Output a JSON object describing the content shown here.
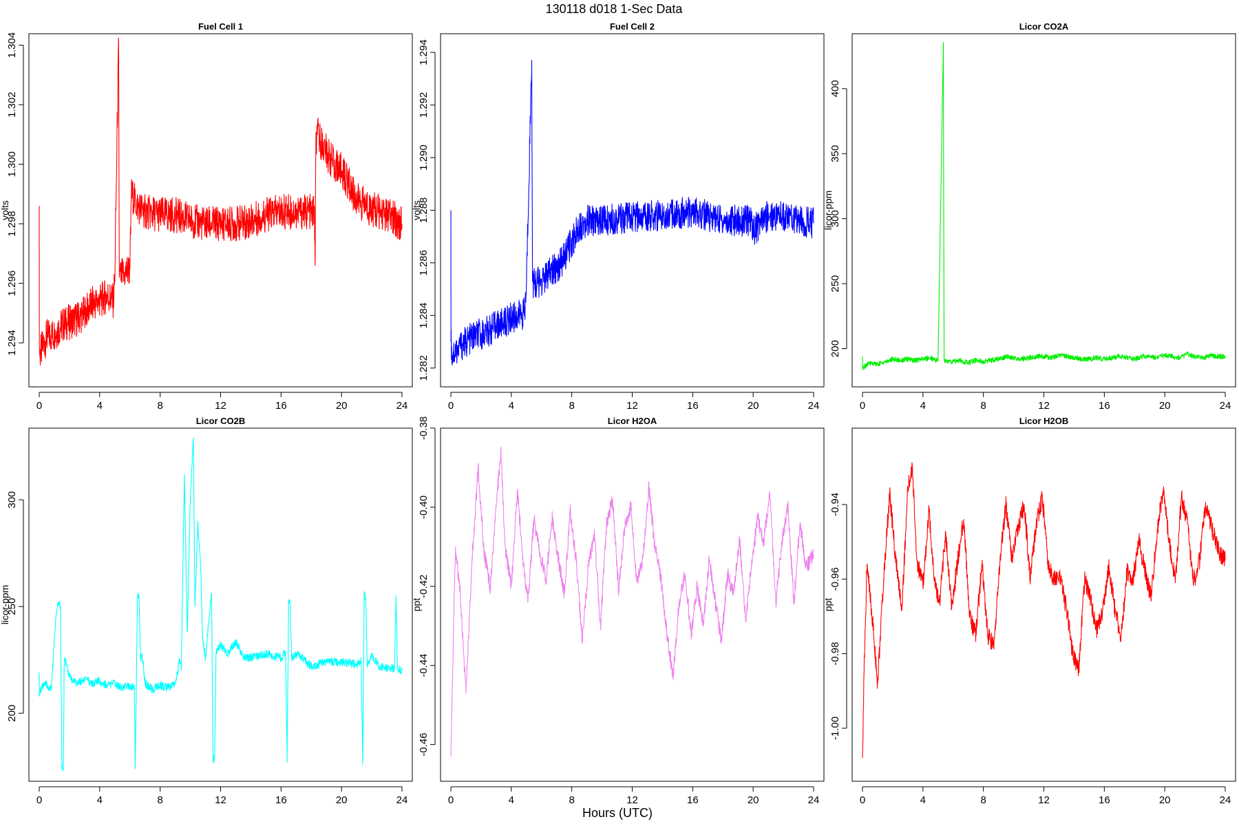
{
  "figure": {
    "title": "130118   d018   1-Sec Data",
    "xlabel": "Hours (UTC)"
  },
  "chart_data": [
    {
      "type": "line",
      "title": "Fuel Cell 1",
      "ylabel": "volts",
      "color": "#ff0000",
      "xlim": [
        0,
        24
      ],
      "ylim": [
        1.2928,
        1.3042
      ],
      "xticks": [
        0,
        4,
        8,
        12,
        16,
        20,
        24
      ],
      "yticks": [
        "1.294",
        "1.296",
        "1.298",
        "1.300",
        "1.302",
        "1.304"
      ],
      "x": [
        0,
        0.01,
        0.03,
        0.5,
        1,
        1.5,
        2,
        2.5,
        3,
        3.5,
        4,
        4.5,
        4.9,
        5.0,
        5.25,
        5.3,
        5.6,
        6.0,
        6.1,
        6.5,
        7,
        8,
        9,
        10,
        11,
        12,
        13,
        14,
        15,
        16,
        17,
        18,
        18.2,
        18.25,
        18.3,
        18.4,
        19,
        19.5,
        20,
        20.5,
        21,
        22,
        23,
        24
      ],
      "y": [
        1.2986,
        1.2938,
        1.2936,
        1.2942,
        1.2943,
        1.2946,
        1.2947,
        1.2948,
        1.295,
        1.2953,
        1.2954,
        1.2956,
        1.2954,
        1.2962,
        1.304,
        1.2962,
        1.2963,
        1.2965,
        1.299,
        1.2986,
        1.2984,
        1.2983,
        1.2983,
        1.2981,
        1.298,
        1.298,
        1.298,
        1.2981,
        1.2983,
        1.2984,
        1.2984,
        1.2984,
        1.2984,
        1.2966,
        1.3005,
        1.301,
        1.3004,
        1.3,
        1.2998,
        1.2993,
        1.2988,
        1.2985,
        1.2983,
        1.298
      ],
      "band": 0.0006
    },
    {
      "type": "line",
      "title": "Fuel Cell 2",
      "ylabel": "volts",
      "color": "#0000ff",
      "xlim": [
        0,
        24
      ],
      "ylim": [
        1.2816,
        1.2945
      ],
      "xticks": [
        0,
        4,
        8,
        12,
        16,
        20,
        24
      ],
      "yticks": [
        "1.282",
        "1.284",
        "1.286",
        "1.288",
        "1.290",
        "1.292",
        "1.294"
      ],
      "x": [
        0,
        0.01,
        0.05,
        0.5,
        1,
        1.5,
        2,
        2.5,
        3,
        3.5,
        4,
        4.5,
        4.9,
        5.0,
        5.35,
        5.4,
        5.5,
        6,
        6.5,
        7,
        7.5,
        8,
        8.5,
        9,
        10,
        11,
        12,
        13,
        14,
        15,
        16,
        17,
        18,
        19,
        19.9,
        20.0,
        20.3,
        21,
        22,
        23,
        24
      ],
      "y": [
        1.288,
        1.283,
        1.2825,
        1.2828,
        1.283,
        1.2832,
        1.2833,
        1.2834,
        1.2836,
        1.2837,
        1.2839,
        1.284,
        1.2841,
        1.2852,
        1.2937,
        1.2853,
        1.2852,
        1.2853,
        1.2856,
        1.2858,
        1.2862,
        1.2868,
        1.2874,
        1.2876,
        1.2876,
        1.2877,
        1.2877,
        1.2878,
        1.2878,
        1.2879,
        1.2879,
        1.2878,
        1.2876,
        1.2876,
        1.2876,
        1.2872,
        1.2874,
        1.2878,
        1.2878,
        1.2876,
        1.2875
      ],
      "band": 0.0006
    },
    {
      "type": "line",
      "title": "Licor CO2A",
      "ylabel": "licor-ppm",
      "color": "#00ee00",
      "xlim": [
        0,
        24
      ],
      "ylim": [
        177,
        438
      ],
      "xticks": [
        0,
        4,
        8,
        12,
        16,
        20,
        24
      ],
      "yticks": [
        "200",
        "250",
        "300",
        "350",
        "400"
      ],
      "x": [
        0,
        0.01,
        0.1,
        0.5,
        1,
        1.5,
        2,
        2.5,
        3,
        3.5,
        4,
        4.5,
        4.95,
        5.0,
        5.35,
        5.4,
        5.6,
        6,
        6.5,
        7,
        7.5,
        8,
        8.5,
        9,
        9.5,
        10,
        10.5,
        11,
        11.5,
        12,
        12.5,
        13,
        13.5,
        14,
        14.5,
        15,
        15.5,
        16,
        16.5,
        17,
        17.5,
        18,
        18.5,
        19,
        19.5,
        20,
        20.5,
        21,
        21.5,
        22,
        22.5,
        23,
        23.5,
        24
      ],
      "y": [
        194,
        184,
        186,
        189,
        188,
        190,
        192,
        191,
        192,
        191,
        192,
        193,
        191,
        191,
        435,
        191,
        190,
        190,
        191,
        189,
        191,
        190,
        191,
        192,
        194,
        193,
        192,
        193,
        194,
        194,
        193,
        195,
        194,
        193,
        192,
        192,
        193,
        192,
        193,
        194,
        193,
        192,
        194,
        194,
        193,
        195,
        194,
        193,
        196,
        194,
        193,
        195,
        194,
        194
      ],
      "band": 2
    },
    {
      "type": "line",
      "title": "Licor CO2B",
      "ylabel": "licor-ppm",
      "color": "#00ffff",
      "xlim": [
        0,
        24
      ],
      "ylim": [
        172,
        331
      ],
      "xticks": [
        0,
        4,
        8,
        12,
        16,
        20,
        24
      ],
      "yticks": [
        "200",
        "250",
        "300"
      ],
      "x": [
        0,
        0.01,
        0.3,
        0.8,
        1.1,
        1.3,
        1.4,
        1.5,
        1.6,
        1.65,
        1.7,
        2,
        2.5,
        3,
        3.5,
        4,
        4.5,
        5,
        5.5,
        6,
        6.3,
        6.35,
        6.5,
        6.6,
        6.7,
        6.8,
        7,
        7.5,
        8,
        8.5,
        9,
        9.3,
        9.4,
        9.6,
        9.8,
        10,
        10.2,
        10.3,
        10.5,
        10.7,
        10.8,
        11,
        11.4,
        11.5,
        11.6,
        11.7,
        12,
        12.5,
        13,
        13.5,
        14,
        15,
        16,
        16.3,
        16.4,
        16.5,
        16.6,
        16.7,
        17,
        18,
        19,
        20,
        21,
        21.3,
        21.4,
        21.5,
        21.6,
        21.7,
        22,
        22.5,
        23,
        23.5,
        23.6,
        23.7,
        24
      ],
      "y": [
        219,
        209,
        214,
        211,
        245,
        252,
        250,
        174,
        175,
        222,
        226,
        217,
        214,
        216,
        214,
        215,
        213,
        214,
        212,
        213,
        212,
        174,
        254,
        255,
        226,
        228,
        214,
        211,
        213,
        212,
        214,
        225,
        220,
        312,
        238,
        302,
        329,
        250,
        290,
        265,
        236,
        226,
        256,
        178,
        180,
        228,
        232,
        228,
        234,
        226,
        226,
        228,
        226,
        229,
        177,
        253,
        252,
        226,
        228,
        222,
        224,
        224,
        223,
        225,
        176,
        257,
        254,
        222,
        227,
        222,
        221,
        221,
        255,
        221,
        220
      ],
      "band": 2
    },
    {
      "type": "line",
      "title": "Licor H2OA",
      "ylabel": "ppt",
      "color": "#ee82ee",
      "xlim": [
        0,
        24
      ],
      "ylim": [
        -0.4672,
        -0.3814
      ],
      "xticks": [
        0,
        4,
        8,
        12,
        16,
        20,
        24
      ],
      "yticks": [
        "-0.46",
        "-0.44",
        "-0.42",
        "-0.40",
        "-0.38"
      ],
      "x": [
        0,
        0.1,
        0.3,
        0.6,
        1.0,
        1.4,
        1.8,
        2.2,
        2.6,
        3.0,
        3.3,
        3.6,
        4.0,
        4.4,
        4.8,
        5.1,
        5.5,
        5.9,
        6.3,
        6.7,
        7.1,
        7.5,
        7.9,
        8.3,
        8.7,
        9.1,
        9.5,
        9.9,
        10.3,
        10.7,
        11.1,
        11.5,
        11.9,
        12.3,
        12.7,
        13.1,
        13.5,
        13.9,
        14.3,
        14.7,
        15.1,
        15.5,
        15.9,
        16.3,
        16.7,
        17.1,
        17.5,
        17.9,
        18.3,
        18.7,
        19.1,
        19.5,
        19.9,
        20.3,
        20.7,
        21.1,
        21.5,
        21.9,
        22.3,
        22.7,
        23.1,
        23.5,
        24
      ],
      "y": [
        -0.463,
        -0.444,
        -0.411,
        -0.42,
        -0.447,
        -0.414,
        -0.39,
        -0.411,
        -0.421,
        -0.4,
        -0.386,
        -0.41,
        -0.42,
        -0.396,
        -0.414,
        -0.424,
        -0.403,
        -0.412,
        -0.418,
        -0.403,
        -0.413,
        -0.422,
        -0.401,
        -0.414,
        -0.434,
        -0.415,
        -0.407,
        -0.43,
        -0.404,
        -0.398,
        -0.421,
        -0.405,
        -0.4,
        -0.419,
        -0.413,
        -0.395,
        -0.41,
        -0.418,
        -0.432,
        -0.443,
        -0.424,
        -0.417,
        -0.432,
        -0.42,
        -0.43,
        -0.413,
        -0.424,
        -0.434,
        -0.417,
        -0.422,
        -0.408,
        -0.429,
        -0.414,
        -0.403,
        -0.409,
        -0.396,
        -0.424,
        -0.409,
        -0.4,
        -0.424,
        -0.404,
        -0.415,
        -0.412
      ],
      "band": 0.002
    },
    {
      "type": "line",
      "title": "Licor H2OB",
      "ylabel": "ppt",
      "color": "#ff0000",
      "xlim": [
        0,
        24
      ],
      "ylim": [
        -1.012,
        -0.921
      ],
      "xticks": [
        0,
        4,
        8,
        12,
        16,
        20,
        24
      ],
      "yticks": [
        "-1.00",
        "-0.98",
        "-0.96",
        "-0.94"
      ],
      "x": [
        0,
        0.1,
        0.3,
        0.6,
        1.0,
        1.4,
        1.8,
        2.2,
        2.6,
        3.0,
        3.3,
        3.6,
        4.0,
        4.4,
        4.8,
        5.1,
        5.5,
        5.9,
        6.3,
        6.7,
        7.1,
        7.5,
        7.9,
        8.3,
        8.7,
        9.1,
        9.5,
        9.9,
        10.3,
        10.7,
        11.1,
        11.5,
        11.9,
        12.3,
        12.7,
        13.1,
        13.5,
        13.9,
        14.3,
        14.7,
        15.1,
        15.5,
        15.9,
        16.3,
        16.7,
        17.1,
        17.5,
        17.9,
        18.3,
        18.7,
        19.1,
        19.5,
        19.9,
        20.3,
        20.7,
        21.1,
        21.5,
        21.9,
        22.3,
        22.7,
        23.1,
        23.5,
        24
      ],
      "y": [
        -1.008,
        -0.985,
        -0.956,
        -0.968,
        -0.988,
        -0.96,
        -0.937,
        -0.955,
        -0.968,
        -0.936,
        -0.93,
        -0.955,
        -0.962,
        -0.942,
        -0.962,
        -0.966,
        -0.948,
        -0.968,
        -0.955,
        -0.944,
        -0.97,
        -0.975,
        -0.956,
        -0.975,
        -0.978,
        -0.955,
        -0.94,
        -0.955,
        -0.946,
        -0.94,
        -0.96,
        -0.945,
        -0.938,
        -0.957,
        -0.96,
        -0.96,
        -0.968,
        -0.98,
        -0.985,
        -0.96,
        -0.965,
        -0.974,
        -0.968,
        -0.957,
        -0.968,
        -0.976,
        -0.958,
        -0.96,
        -0.95,
        -0.958,
        -0.965,
        -0.947,
        -0.936,
        -0.95,
        -0.961,
        -0.938,
        -0.945,
        -0.961,
        -0.955,
        -0.94,
        -0.946,
        -0.952,
        -0.955
      ],
      "band": 0.0025
    }
  ]
}
